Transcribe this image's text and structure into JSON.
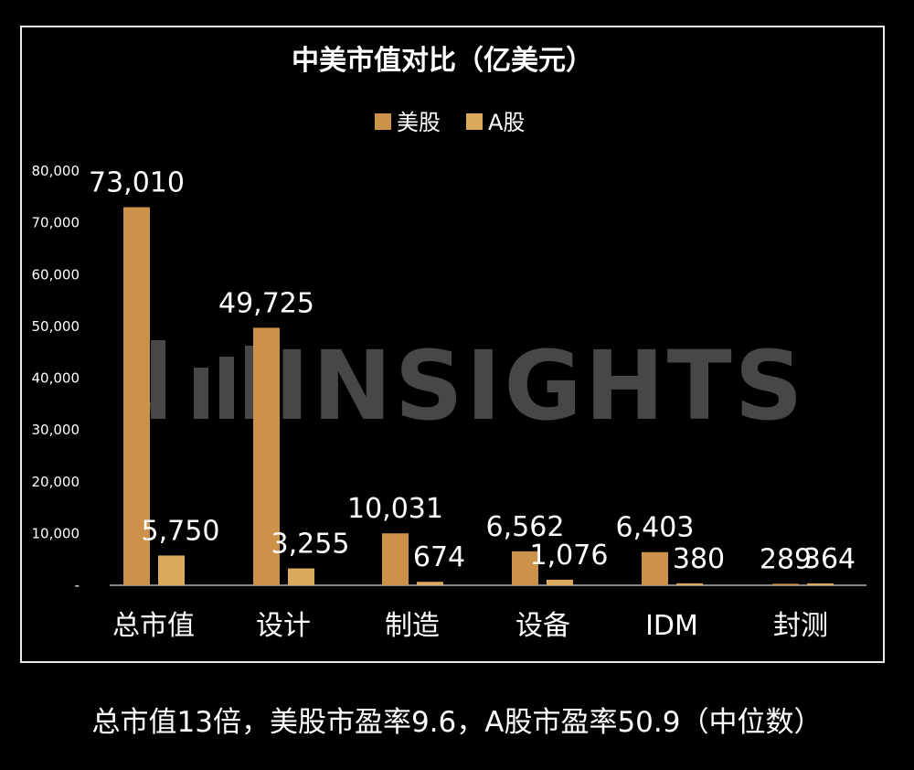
{
  "chart_data": {
    "type": "bar",
    "title": "中美市值对比（亿美元）",
    "categories": [
      "总市值",
      "设计",
      "制造",
      "设备",
      "IDM",
      "封测"
    ],
    "series": [
      {
        "name": "美股",
        "values": [
          73010,
          49725,
          10031,
          6562,
          6403,
          289
        ],
        "color": "#cd9249"
      },
      {
        "name": "A股",
        "values": [
          5750,
          3255,
          674,
          1076,
          380,
          364
        ],
        "color": "#dcaa5c"
      }
    ],
    "value_labels": [
      [
        "73,010",
        "49,725",
        "10,031",
        "6,562",
        "6,403",
        "289"
      ],
      [
        "5,750",
        "3,255",
        "674",
        "1,076",
        "380",
        "364"
      ]
    ],
    "y_ticks": [
      "-",
      "10,000",
      "20,000",
      "30,000",
      "40,000",
      "50,000",
      "60,000",
      "70,000",
      "80,000"
    ],
    "ylim": [
      0,
      80000
    ],
    "xlabel": "",
    "ylabel": "",
    "legend": "top-center",
    "grid": false
  },
  "watermark": {
    "text": "INSIGHTS",
    "logo_icon": "jm-logo-icon"
  },
  "footnote": "总市值13倍，美股市盈率9.6，A股市盈率50.9（中位数）",
  "colors": {
    "background": "#000000",
    "frame": "#e8e8e8",
    "text": "#ffffff"
  }
}
